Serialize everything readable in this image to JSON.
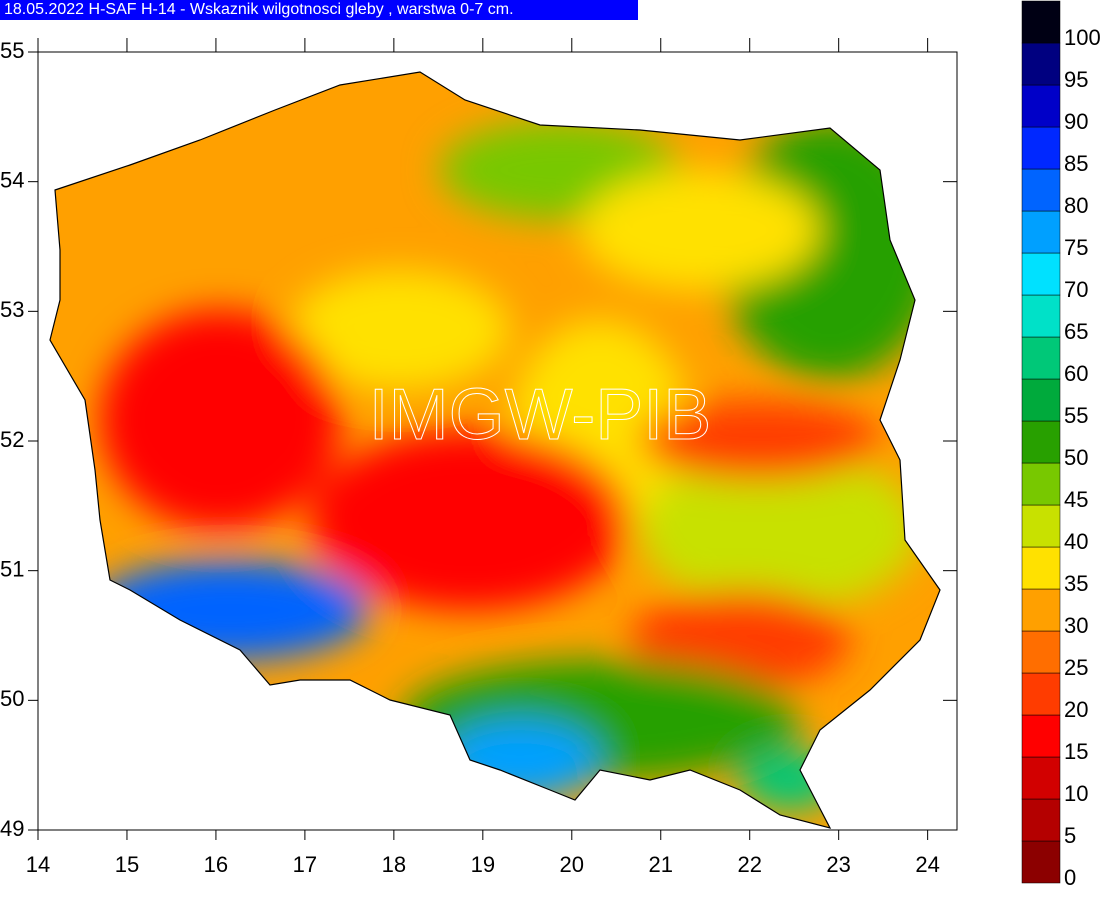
{
  "title": "18.05.2022 H-SAF H-14 - Wskaznik wilgotnosci gleby , warstwa 0-7 cm.",
  "watermark": "IMGW-PIB",
  "map": {
    "xlim": [
      14,
      24.33
    ],
    "ylim": [
      49,
      55
    ],
    "xticks": [
      14,
      15,
      16,
      17,
      18,
      19,
      20,
      21,
      22,
      23,
      24
    ],
    "yticks": [
      49,
      50,
      51,
      52,
      53,
      54,
      55
    ]
  },
  "colorbar": {
    "levels": [
      0,
      5,
      10,
      15,
      20,
      25,
      30,
      35,
      40,
      45,
      50,
      55,
      60,
      65,
      70,
      75,
      80,
      85,
      90,
      95,
      100
    ],
    "colors": [
      "#8c0000",
      "#b40000",
      "#d20000",
      "#ff0000",
      "#ff3c00",
      "#ff6e00",
      "#ffa000",
      "#ffe100",
      "#c8e100",
      "#78c800",
      "#28a000",
      "#00aa3c",
      "#00c878",
      "#00e1c8",
      "#00e1ff",
      "#00a0ff",
      "#0064ff",
      "#0028ff",
      "#0000c8",
      "#000080",
      "#000014"
    ]
  }
}
